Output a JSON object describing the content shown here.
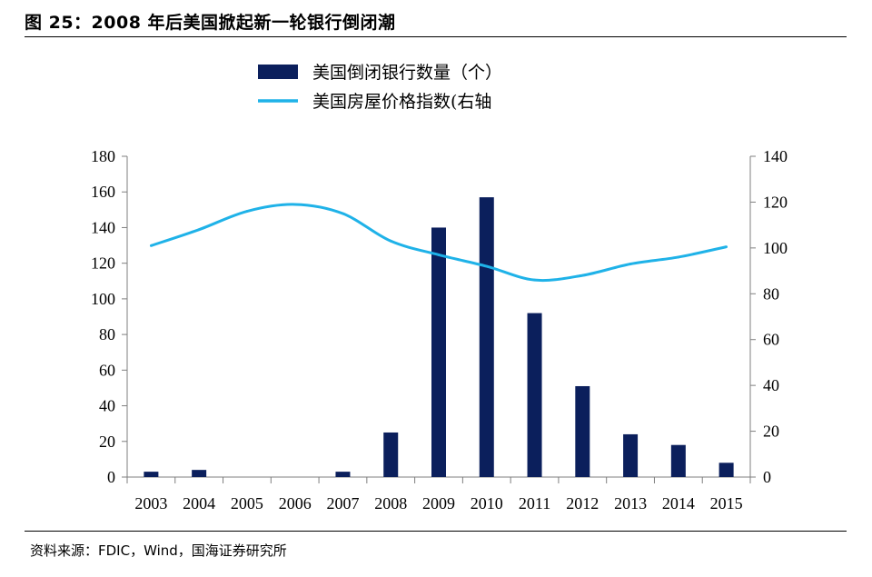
{
  "figure": {
    "title": "图 25：2008 年后美国掀起新一轮银行倒闭潮",
    "source": "资料来源：FDIC，Wind，国海证券研究所"
  },
  "colors": {
    "bar": "#0b1f5c",
    "line": "#1fb2e8",
    "axis": "#7f7f7f"
  },
  "chart_data": {
    "type": "bar",
    "categories": [
      "2003",
      "2004",
      "2005",
      "2006",
      "2007",
      "2008",
      "2009",
      "2010",
      "2011",
      "2012",
      "2013",
      "2014",
      "2015"
    ],
    "series": [
      {
        "name": "美国倒闭银行数量（个）",
        "type": "bar",
        "axis": "left",
        "values": [
          3,
          4,
          0,
          0,
          3,
          25,
          140,
          157,
          92,
          51,
          24,
          18,
          8
        ]
      },
      {
        "name": "美国房屋价格指数(右轴",
        "type": "line",
        "axis": "right",
        "values": [
          101,
          108,
          116,
          119,
          115,
          103,
          97,
          92,
          86,
          88,
          93,
          96,
          100.5
        ]
      }
    ],
    "y_left": {
      "ylim": [
        0,
        180
      ],
      "ticks": [
        "0",
        "20",
        "40",
        "60",
        "80",
        "100",
        "120",
        "140",
        "160",
        "180"
      ]
    },
    "y_right": {
      "ylim": [
        0,
        140
      ],
      "ticks": [
        "0",
        "20",
        "40",
        "60",
        "80",
        "100",
        "120",
        "140"
      ]
    },
    "grid": false,
    "legend_position": "top-center"
  }
}
